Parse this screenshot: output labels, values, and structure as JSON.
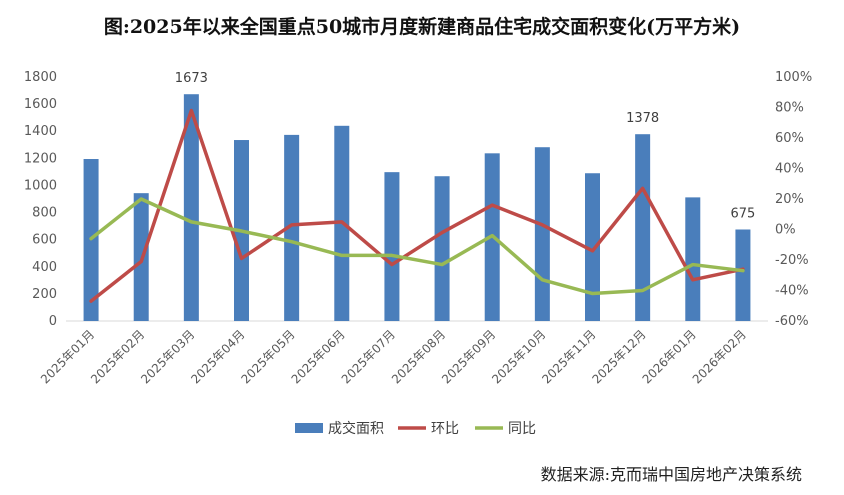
{
  "chart_data": {
    "type": "bar",
    "title": "图:2025年以来全国重点50城市月度新建商品住宅成交面积变化(万平方米)",
    "source": "数据来源:克而瑞中国房地产决策系统",
    "categories": [
      "2025年01月",
      "2025年02月",
      "2025年03月",
      "2025年04月",
      "2025年05月",
      "2025年06月",
      "2025年07月",
      "2025年08月",
      "2025年09月",
      "2025年10月",
      "2025年11月",
      "2025年12月",
      "2026年01月",
      "2026年02月"
    ],
    "ylim": [
      0,
      1800
    ],
    "yticks": [
      "0",
      "200",
      "400",
      "600",
      "800",
      "1000",
      "1200",
      "1400",
      "1600",
      "1800"
    ],
    "y2lim": [
      -60,
      100
    ],
    "y2ticks": [
      "-60%",
      "-40%",
      "-20%",
      "0%",
      "20%",
      "40%",
      "60%",
      "80%",
      "100%"
    ],
    "series": [
      {
        "name": "成交面积",
        "type": "bar",
        "color": "#4a7ebb",
        "values": [
          1195,
          943,
          1673,
          1335,
          1373,
          1440,
          1098,
          1068,
          1237,
          1282,
          1090,
          1378,
          912,
          675
        ]
      },
      {
        "name": "环比",
        "type": "line",
        "axis": "right",
        "color": "#be4b48",
        "values": [
          -47,
          -21,
          78,
          -19,
          3,
          5,
          -23,
          -2,
          16,
          3,
          -14,
          27,
          -33,
          -26
        ]
      },
      {
        "name": "同比",
        "type": "line",
        "axis": "right",
        "color": "#98b954",
        "values": [
          -6,
          20,
          5,
          -1,
          -8,
          -17,
          -17,
          -23,
          -4,
          -33,
          -42,
          -40,
          -23,
          -27
        ]
      }
    ],
    "data_labels": [
      {
        "index": 2,
        "text": "1673"
      },
      {
        "index": 11,
        "text": "1378"
      },
      {
        "index": 13,
        "text": "675"
      }
    ]
  }
}
